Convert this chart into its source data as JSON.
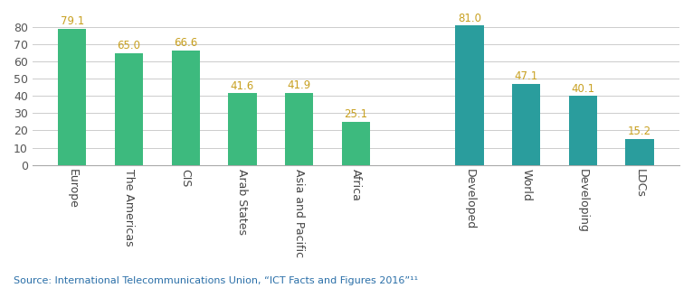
{
  "categories": [
    "Europe",
    "The Americas",
    "CIS",
    "Arab States",
    "Asia and Pacific",
    "Africa",
    "",
    "Developed",
    "World",
    "Developing",
    "LDCs"
  ],
  "values": [
    79.1,
    65.0,
    66.6,
    41.6,
    41.9,
    25.1,
    null,
    81.0,
    47.1,
    40.1,
    15.2
  ],
  "bar_colors": [
    "#3dba7e",
    "#3dba7e",
    "#3dba7e",
    "#3dba7e",
    "#3dba7e",
    "#3dba7e",
    null,
    "#2a9d9d",
    "#2a9d9d",
    "#2a9d9d",
    "#2a9d9d"
  ],
  "labels": [
    "79.1",
    "65.0",
    "66.6",
    "41.6",
    "41.9",
    "25.1",
    "",
    "81.0",
    "47.1",
    "40.1",
    "15.2"
  ],
  "value_label_color": "#c8a020",
  "ylim": [
    0,
    88
  ],
  "yticks": [
    0,
    10,
    20,
    30,
    40,
    50,
    60,
    70,
    80
  ],
  "source_text": "Source: International Telecommunications Union, “ICT Facts and Figures 2016”¹¹",
  "background_color": "#ffffff",
  "label_fontsize": 8.5,
  "tick_fontsize": 9,
  "source_fontsize": 8,
  "bar_width": 0.5
}
